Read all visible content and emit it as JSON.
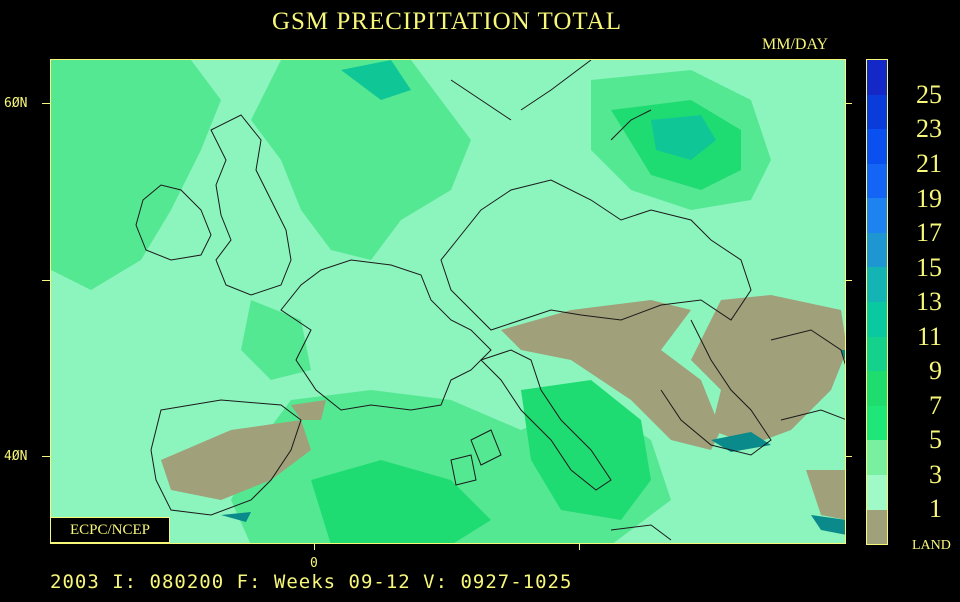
{
  "title": "GSM PRECIPITATION TOTAL",
  "units": "MM/DAY",
  "lat_labels": {
    "n60": "6ØN",
    "n40": "4ØN"
  },
  "lon_labels": {
    "zero": "0"
  },
  "credit": "ECPC/NCEP",
  "footer": "2003 I: 080200 F: Weeks 09-12 V: 0927-1025",
  "legend": {
    "labels": [
      "25",
      "23",
      "21",
      "19",
      "17",
      "15",
      "13",
      "11",
      "9",
      "7",
      "5",
      "3",
      "1"
    ],
    "land_label": "LAND",
    "colors": [
      "#1428c8",
      "#0a3cdc",
      "#0a50f0",
      "#1464f5",
      "#1e82f0",
      "#1e96d2",
      "#14b4b4",
      "#0ac8a0",
      "#14d28c",
      "#1edc6e",
      "#1ee678",
      "#78f0a0",
      "#a0fac8",
      "#a0a07a"
    ]
  },
  "map": {
    "region": "Europe",
    "colors": {
      "light": "#8cf5be",
      "mid": "#55e893",
      "dark": "#1fdc72",
      "teal": "#0fc696",
      "land": "#a0a07a",
      "dryteal": "#0a8a8a"
    }
  }
}
